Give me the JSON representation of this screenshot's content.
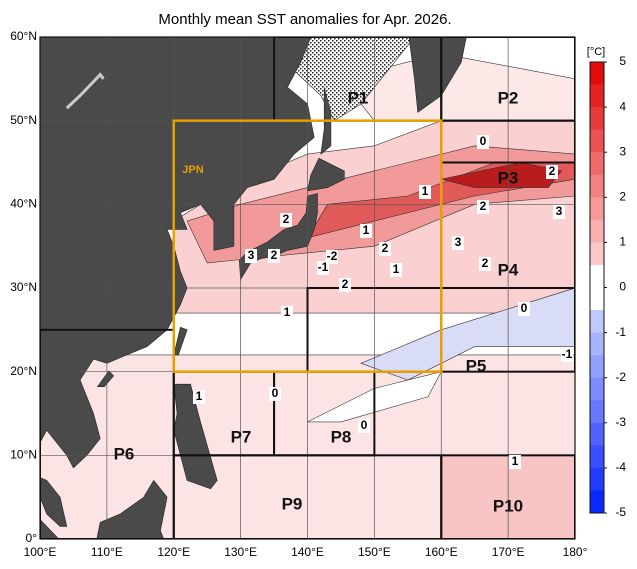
{
  "title": "Monthly mean SST anomalies for Apr. 2026.",
  "map": {
    "xlim": [
      100,
      180
    ],
    "ylim": [
      0,
      60
    ],
    "xticks": [
      {
        "value": 100,
        "label": "100°E"
      },
      {
        "value": 110,
        "label": "110°E"
      },
      {
        "value": 120,
        "label": "120°E"
      },
      {
        "value": 130,
        "label": "130°E"
      },
      {
        "value": 140,
        "label": "140°E"
      },
      {
        "value": 150,
        "label": "150°E"
      },
      {
        "value": 160,
        "label": "160°E"
      },
      {
        "value": 170,
        "label": "170°E"
      },
      {
        "value": 180,
        "label": "180°"
      }
    ],
    "yticks": [
      {
        "value": 0,
        "label": "0°"
      },
      {
        "value": 10,
        "label": "10°N"
      },
      {
        "value": 20,
        "label": "20°N"
      },
      {
        "value": 30,
        "label": "30°N"
      },
      {
        "value": 40,
        "label": "40°N"
      },
      {
        "value": 50,
        "label": "50°N"
      },
      {
        "value": 60,
        "label": "60°N"
      }
    ],
    "regions": [
      "P1",
      "P2",
      "P3",
      "P4",
      "P5",
      "P6",
      "P7",
      "P8",
      "P9",
      "P10",
      "JPN"
    ],
    "contour_labels": [
      0,
      1,
      2,
      2,
      3,
      1,
      2,
      3,
      2,
      3,
      2,
      1,
      -1,
      -2,
      2,
      1,
      2,
      0,
      -1,
      0,
      1,
      0,
      1
    ]
  },
  "colorbar": {
    "unit": "[°C]",
    "ticks": [
      5,
      4,
      3,
      2,
      1,
      0,
      -1,
      -2,
      -3,
      -4,
      -5
    ]
  }
}
